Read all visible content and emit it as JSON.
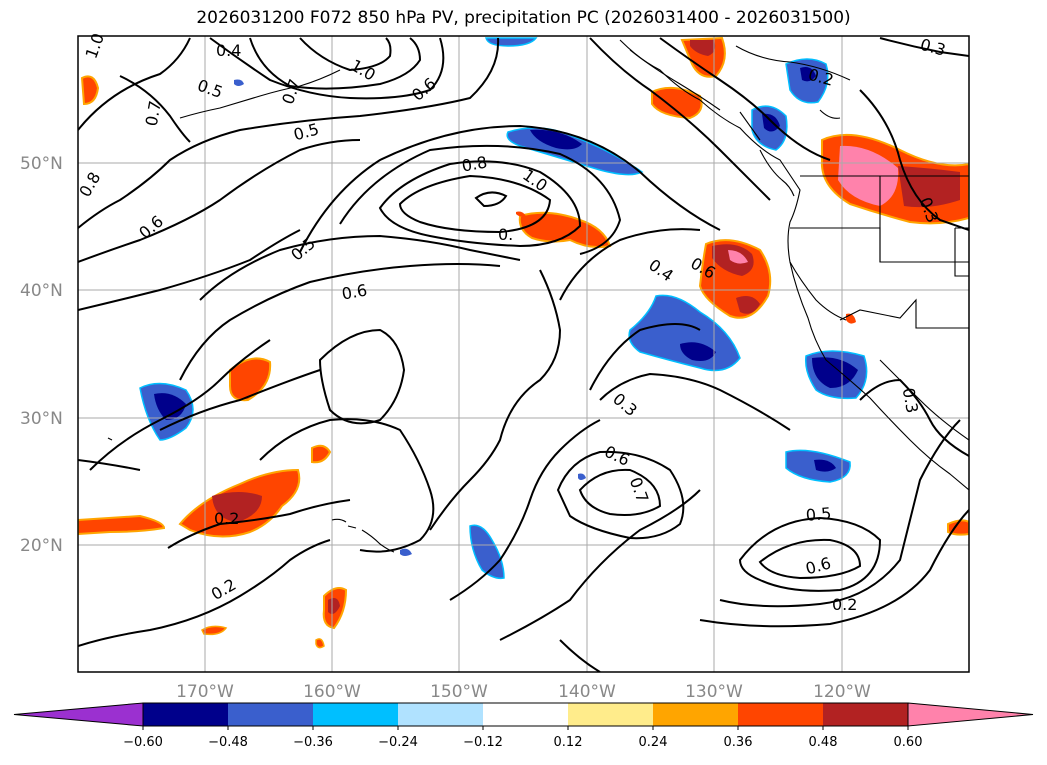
{
  "title": "2026031200 F072 850 hPa PV, precipitation PC (2026031400 - 2026031500)",
  "lat_labels": [
    "50°N",
    "40°N",
    "30°N",
    "20°N"
  ],
  "lon_labels": [
    "170°W",
    "160°W",
    "150°W",
    "140°W",
    "130°W",
    "120°W"
  ],
  "contour_labels": [
    "0.4",
    "1.0",
    "0.5",
    "0.7",
    "1.0",
    "0.6",
    "0.3",
    "0.2",
    "0.7",
    "0.5",
    "0.8",
    "1.0",
    "0.6",
    "0.5",
    "0.6",
    "0.4",
    "0.6",
    "0.3",
    "0.6",
    "0.7",
    "0.2",
    "0.2",
    "0.5",
    "0.6",
    "0.2",
    "0.3",
    "0.3",
    "0.8",
    "0."
  ],
  "colorbar": {
    "ticks": [
      "−0.60",
      "−0.48",
      "−0.36",
      "−0.24",
      "−0.12",
      "0.12",
      "0.24",
      "0.36",
      "0.48",
      "0.60"
    ],
    "colors": [
      "#9b30d0",
      "#00008b",
      "#3a5fcd",
      "#00bfff",
      "#b0e2ff",
      "#ffffff",
      "#ffec8b",
      "#ffa500",
      "#ff4500",
      "#b22222",
      "#ff82ab"
    ]
  },
  "colors": {
    "coast": "#000000",
    "grid": "#aaaaaa",
    "contour": "#000000"
  }
}
